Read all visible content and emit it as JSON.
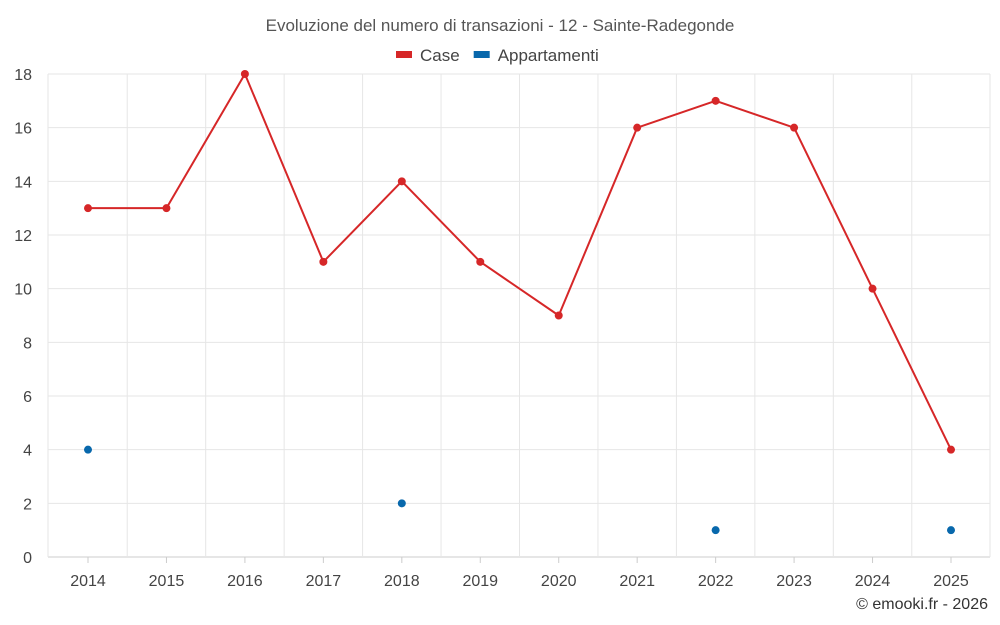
{
  "chart_data": {
    "type": "line",
    "title": "Evoluzione del numero di transazioni - 12 - Sainte-Radegonde",
    "categories": [
      "2014",
      "2015",
      "2016",
      "2017",
      "2018",
      "2019",
      "2020",
      "2021",
      "2022",
      "2023",
      "2024",
      "2025"
    ],
    "series": [
      {
        "name": "Case",
        "color": "#d62728",
        "values": [
          13,
          13,
          18,
          11,
          14,
          11,
          9,
          16,
          17,
          16,
          10,
          4
        ]
      },
      {
        "name": "Appartamenti",
        "color": "#0868ac",
        "values": [
          4,
          null,
          null,
          null,
          2,
          null,
          null,
          null,
          1,
          null,
          null,
          1
        ]
      }
    ],
    "ylim": [
      0,
      18
    ],
    "yticks": [
      0,
      2,
      4,
      6,
      8,
      10,
      12,
      14,
      16,
      18
    ],
    "grid": true,
    "legend": "top-center"
  },
  "credit": "© emooki.fr - 2026"
}
